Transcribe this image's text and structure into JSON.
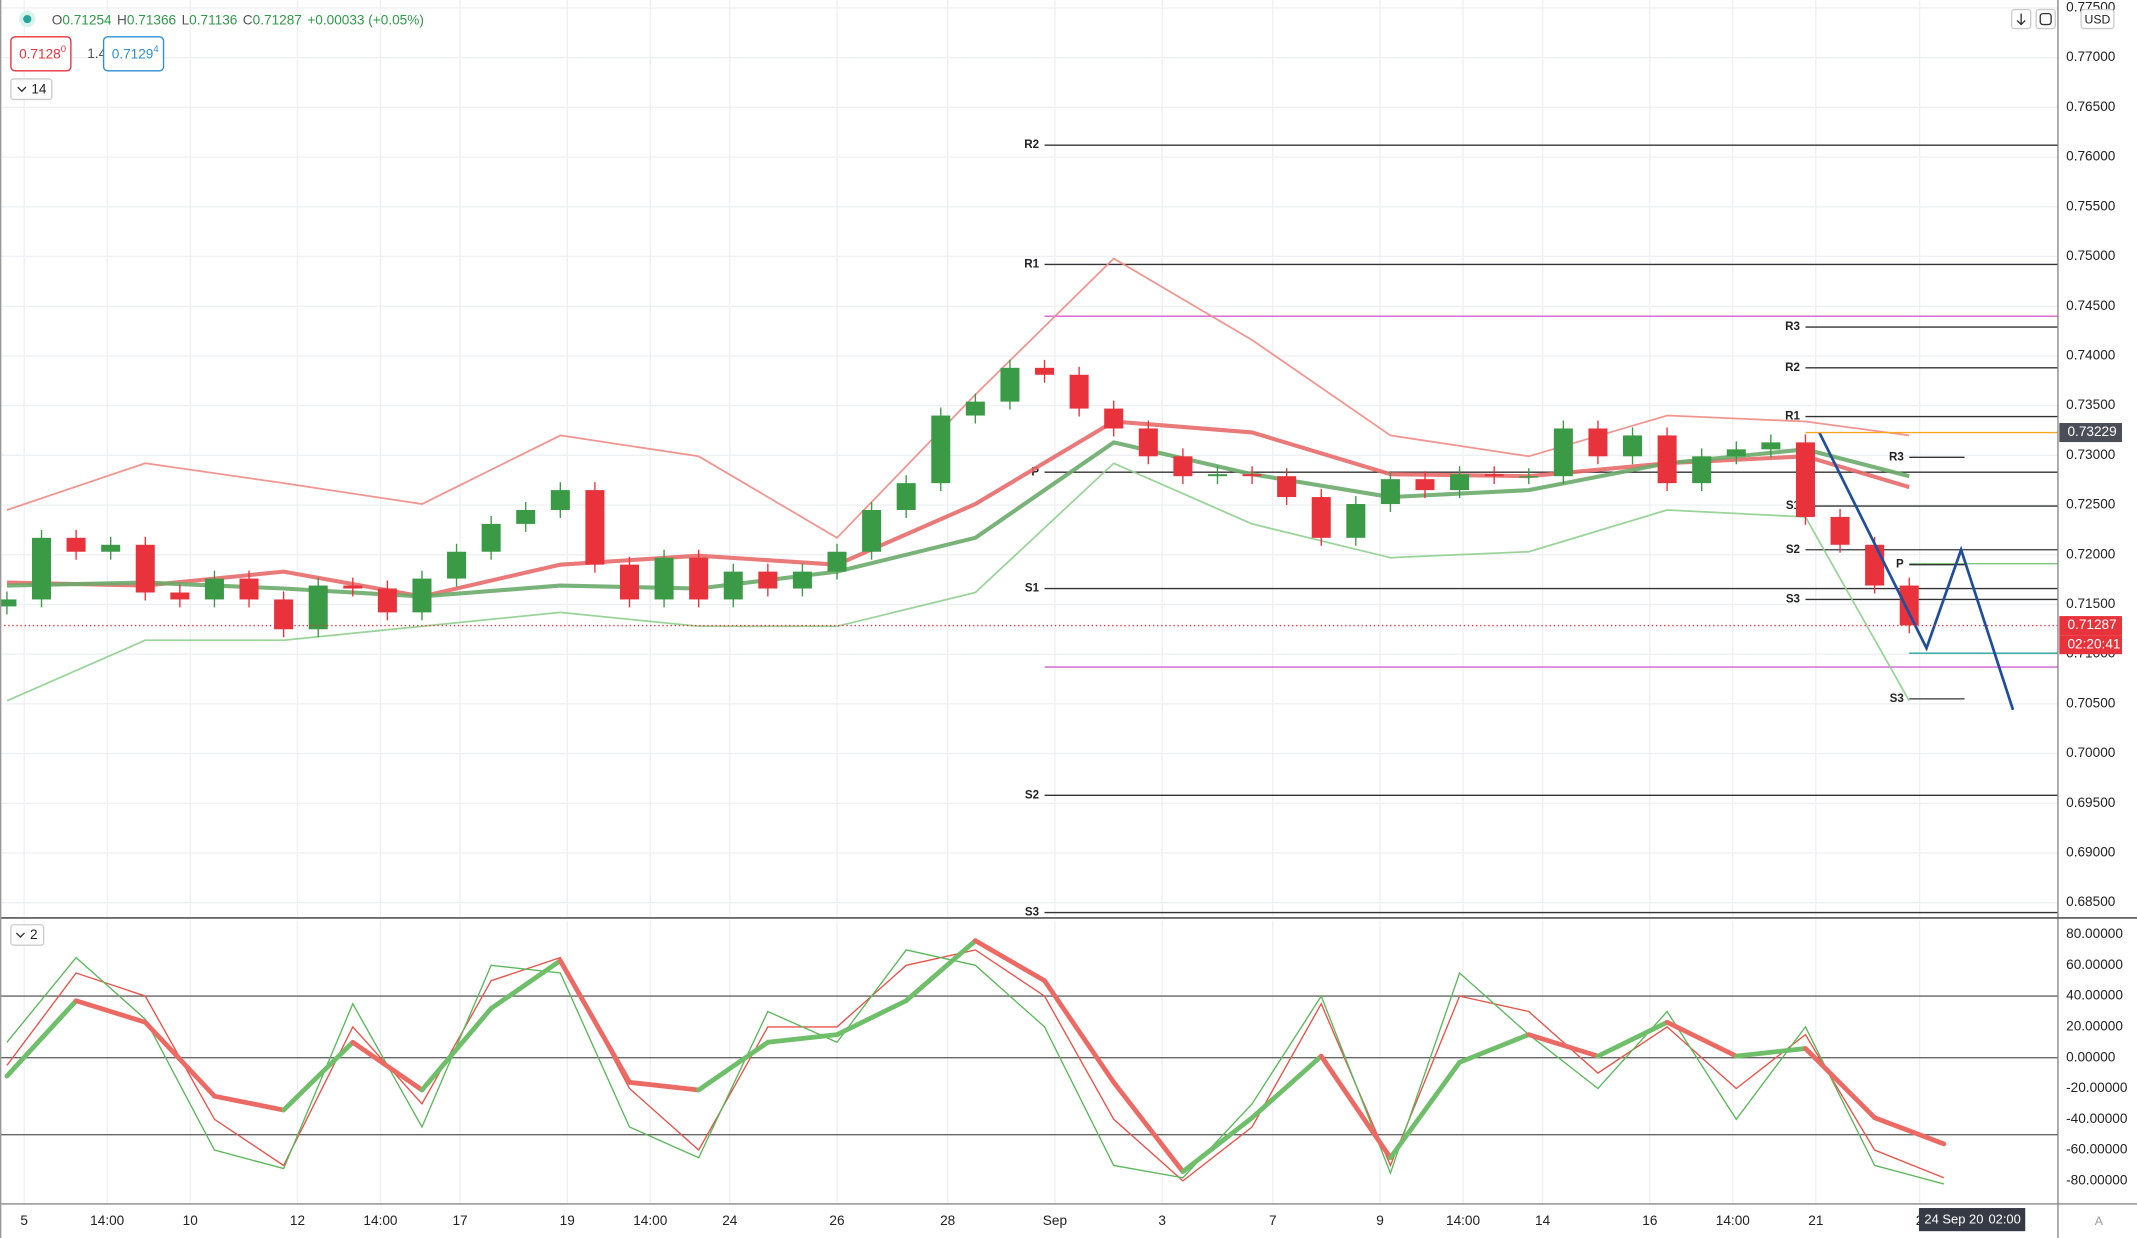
{
  "header": {
    "ohlc": [
      {
        "key": "O",
        "value": "0.71254"
      },
      {
        "key": "H",
        "value": "0.71366"
      },
      {
        "key": "L",
        "value": "0.71136"
      },
      {
        "key": "C",
        "value": "0.71287"
      }
    ],
    "change": "+0.00033 (+0.05%)",
    "bid": {
      "main": "0.7128",
      "pip": "0"
    },
    "spread": "1.4",
    "ask": {
      "main": "0.7129",
      "pip": "4"
    },
    "indicator_toggle": "14",
    "currency": "USD"
  },
  "footer": {
    "oscillator_toggle": "2",
    "cursor_date": "24 Sep 20",
    "cursor_time": "02:00",
    "scale_mode": "A"
  },
  "chart_data": [
    {
      "type": "candlestick",
      "grid": true,
      "up_color": "#3a9a45",
      "down_color": "#e8323c",
      "xlim": [
        -0.2,
        59.3
      ],
      "xticks": [
        {
          "value": 0.5,
          "label": "5"
        },
        {
          "value": 2.9,
          "label": "14:00"
        },
        {
          "value": 5.3,
          "label": "10"
        },
        {
          "value": 8.4,
          "label": "12"
        },
        {
          "value": 10.8,
          "label": "14:00"
        },
        {
          "value": 13.1,
          "label": "17"
        },
        {
          "value": 16.2,
          "label": "19"
        },
        {
          "value": 18.6,
          "label": "14:00"
        },
        {
          "value": 20.9,
          "label": "24"
        },
        {
          "value": 24.0,
          "label": "26"
        },
        {
          "value": 27.2,
          "label": "28"
        },
        {
          "value": 30.3,
          "label": "Sep"
        },
        {
          "value": 33.4,
          "label": "3"
        },
        {
          "value": 36.6,
          "label": "7"
        },
        {
          "value": 39.7,
          "label": "9"
        },
        {
          "value": 42.1,
          "label": "14:00"
        },
        {
          "value": 44.4,
          "label": "14"
        },
        {
          "value": 47.5,
          "label": "16"
        },
        {
          "value": 49.9,
          "label": "14:00"
        },
        {
          "value": 52.3,
          "label": "21"
        },
        {
          "value": 55.3,
          "label": "2"
        }
      ],
      "ylim": [
        0.6836,
        0.7758
      ],
      "yticks": [
        {
          "value": 0.685,
          "label": "0.68500"
        },
        {
          "value": 0.69,
          "label": "0.69000"
        },
        {
          "value": 0.695,
          "label": "0.69500"
        },
        {
          "value": 0.7,
          "label": "0.70000"
        },
        {
          "value": 0.705,
          "label": "0.70500"
        },
        {
          "value": 0.71,
          "label": "0.71000"
        },
        {
          "value": 0.715,
          "label": "0.71500"
        },
        {
          "value": 0.72,
          "label": "0.72000"
        },
        {
          "value": 0.725,
          "label": "0.72500"
        },
        {
          "value": 0.73,
          "label": "0.73000"
        },
        {
          "value": 0.735,
          "label": "0.73500"
        },
        {
          "value": 0.74,
          "label": "0.74000"
        },
        {
          "value": 0.745,
          "label": "0.74500"
        },
        {
          "value": 0.75,
          "label": "0.75000"
        },
        {
          "value": 0.755,
          "label": "0.75500"
        },
        {
          "value": 0.76,
          "label": "0.76000"
        },
        {
          "value": 0.765,
          "label": "0.76500"
        },
        {
          "value": 0.77,
          "label": "0.77000"
        },
        {
          "value": 0.775,
          "label": "0.77500"
        }
      ],
      "open": [
        0.7148,
        0.7155,
        0.7217,
        0.7203,
        0.721,
        0.7162,
        0.7155,
        0.7176,
        0.7155,
        0.7125,
        0.7169,
        0.7166,
        0.7142,
        0.7176,
        0.7203,
        0.7231,
        0.7245,
        0.7265,
        0.719,
        0.7155,
        0.7197,
        0.7155,
        0.7183,
        0.7166,
        0.7183,
        0.7203,
        0.7245,
        0.7272,
        0.734,
        0.7354,
        0.7388,
        0.7381,
        0.7347,
        0.7327,
        0.7299,
        0.7279,
        0.7281,
        0.7279,
        0.7258,
        0.7217,
        0.7251,
        0.7276,
        0.7265,
        0.7281,
        0.7279,
        0.7279,
        0.7327,
        0.7299,
        0.732,
        0.7272,
        0.7299,
        0.7306,
        0.7313,
        0.7238,
        0.721,
        0.7169
      ],
      "high": [
        0.7163,
        0.7225,
        0.7225,
        0.7218,
        0.7218,
        0.717,
        0.7184,
        0.7184,
        0.7163,
        0.7177,
        0.7177,
        0.7174,
        0.7184,
        0.7211,
        0.7239,
        0.7253,
        0.7273,
        0.7273,
        0.7198,
        0.7205,
        0.7205,
        0.7191,
        0.7191,
        0.7191,
        0.7211,
        0.7253,
        0.728,
        0.7348,
        0.7362,
        0.7396,
        0.7396,
        0.7389,
        0.7355,
        0.7335,
        0.7307,
        0.7289,
        0.7289,
        0.7287,
        0.7266,
        0.7259,
        0.7284,
        0.7284,
        0.7289,
        0.7289,
        0.7287,
        0.7335,
        0.7335,
        0.7328,
        0.7328,
        0.7307,
        0.7314,
        0.7321,
        0.7321,
        0.7246,
        0.7218,
        0.7177
      ],
      "low": [
        0.714,
        0.7147,
        0.7195,
        0.7195,
        0.7154,
        0.7147,
        0.7147,
        0.7147,
        0.7117,
        0.7117,
        0.7158,
        0.7134,
        0.7134,
        0.7168,
        0.7195,
        0.7223,
        0.7237,
        0.7182,
        0.7147,
        0.7147,
        0.7147,
        0.7147,
        0.7158,
        0.7158,
        0.7175,
        0.7195,
        0.7237,
        0.7264,
        0.7332,
        0.7346,
        0.7373,
        0.7339,
        0.7319,
        0.7291,
        0.7271,
        0.7271,
        0.7271,
        0.725,
        0.7209,
        0.7209,
        0.7243,
        0.7257,
        0.7257,
        0.7271,
        0.7271,
        0.7271,
        0.7291,
        0.7291,
        0.7264,
        0.7264,
        0.7291,
        0.7298,
        0.723,
        0.7202,
        0.7161,
        0.7121
      ],
      "close": [
        0.7155,
        0.7217,
        0.7203,
        0.721,
        0.7162,
        0.7155,
        0.7176,
        0.7155,
        0.7125,
        0.7169,
        0.7166,
        0.7142,
        0.7176,
        0.7203,
        0.7231,
        0.7245,
        0.7265,
        0.719,
        0.7155,
        0.7197,
        0.7155,
        0.7183,
        0.7166,
        0.7183,
        0.7203,
        0.7245,
        0.7272,
        0.734,
        0.7354,
        0.7388,
        0.7381,
        0.7347,
        0.7327,
        0.7299,
        0.7279,
        0.7281,
        0.7279,
        0.7258,
        0.7217,
        0.7251,
        0.7276,
        0.7265,
        0.7281,
        0.7279,
        0.7279,
        0.7327,
        0.7299,
        0.732,
        0.7272,
        0.7299,
        0.7306,
        0.7313,
        0.7238,
        0.721,
        0.7169,
        0.7129
      ],
      "overlays": [
        {
          "color": "#f08a84",
          "width": 1.3,
          "x": [
            0,
            4,
            8,
            12,
            16,
            20,
            24,
            28,
            32,
            36,
            40,
            44,
            48,
            52,
            55
          ],
          "values": [
            0.7245,
            0.7292,
            0.7272,
            0.7251,
            0.732,
            0.7299,
            0.7217,
            0.7361,
            0.7498,
            0.7416,
            0.732,
            0.7299,
            0.734,
            0.7334,
            0.732
          ]
        },
        {
          "color": "#8fcf8f",
          "width": 1.3,
          "x": [
            0,
            4,
            8,
            12,
            16,
            20,
            24,
            28,
            32,
            36,
            40,
            44,
            48,
            52,
            55
          ],
          "values": [
            0.7053,
            0.7114,
            0.7114,
            0.7128,
            0.7142,
            0.7128,
            0.7128,
            0.7162,
            0.7292,
            0.7231,
            0.7197,
            0.7203,
            0.7245,
            0.7238,
            0.7053
          ]
        },
        {
          "color": "#e86a6a",
          "width": 3,
          "x": [
            0,
            4,
            8,
            12,
            16,
            20,
            24,
            28,
            32,
            36,
            40,
            44,
            48,
            52,
            55
          ],
          "values": [
            0.7172,
            0.7169,
            0.7183,
            0.7158,
            0.719,
            0.7199,
            0.719,
            0.7251,
            0.7334,
            0.7323,
            0.7281,
            0.7279,
            0.7292,
            0.7299,
            0.7268
          ]
        },
        {
          "color": "#6aab6a",
          "width": 3,
          "x": [
            0,
            4,
            8,
            12,
            16,
            20,
            24,
            28,
            32,
            36,
            40,
            44,
            48,
            52,
            55
          ],
          "values": [
            0.7169,
            0.7172,
            0.7166,
            0.7158,
            0.7169,
            0.7166,
            0.7183,
            0.7217,
            0.7313,
            0.7281,
            0.7258,
            0.7265,
            0.7292,
            0.7306,
            0.7279
          ]
        }
      ],
      "levels": [
        {
          "label": "R2",
          "value": 0.7612,
          "from": 30.0
        },
        {
          "label": "R1",
          "value": 0.7492,
          "from": 30.0
        },
        {
          "label": "P",
          "value": 0.7283,
          "from": 30.0
        },
        {
          "label": "S1",
          "value": 0.7166,
          "from": 30.0
        },
        {
          "label": "S2",
          "value": 0.6958,
          "from": 30.0
        },
        {
          "label": "S3",
          "value": 0.684,
          "from": 30.0
        },
        {
          "label": "R3",
          "value": 0.7429,
          "from": 52.0
        },
        {
          "label": "R2",
          "value": 0.7388,
          "from": 52.0
        },
        {
          "label": "R1",
          "value": 0.7339,
          "from": 52.0
        },
        {
          "label": "S1",
          "value": 0.7249,
          "from": 52.0
        },
        {
          "label": "S2",
          "value": 0.7205,
          "from": 52.0
        },
        {
          "label": "S3",
          "value": 0.7155,
          "from": 52.0
        },
        {
          "label": "R3",
          "value": 0.7298,
          "from": 55.0,
          "to": 56.6
        },
        {
          "label": "P",
          "value": 0.719,
          "from": 55.0,
          "to": 56.6
        },
        {
          "label": "S3",
          "value": 0.7055,
          "from": 55.0,
          "to": 56.6
        }
      ],
      "lines": [
        {
          "value": 0.744,
          "from": 30.0,
          "color": "#d35fd3"
        },
        {
          "value": 0.7087,
          "from": 30.0,
          "color": "#d35fd3"
        },
        {
          "value": 0.7191,
          "from": 55.0,
          "color": "#7cc47f"
        },
        {
          "value": 0.7101,
          "from": 55.0,
          "color": "#26a69a"
        }
      ],
      "markers": [
        {
          "value": 0.73229,
          "from": 52.0,
          "color": "#4a4e58",
          "line_color": "#f5a623"
        },
        {
          "value": 0.71287,
          "from": -0.2,
          "color": "#e8323c",
          "line_color": "#e8323c",
          "dotted": true,
          "countdown": "02:20:41"
        }
      ],
      "projection": {
        "color": "#1f4e9c",
        "x": [
          52.4,
          55.5,
          56.5,
          58.0
        ],
        "values": [
          0.7323,
          0.7106,
          0.7205,
          0.7044
        ]
      }
    },
    {
      "type": "line",
      "ylim": [
        -95,
        89
      ],
      "yticks": [
        {
          "value": -80,
          "label": "-80.00000"
        },
        {
          "value": -60,
          "label": "-60.00000"
        },
        {
          "value": -40,
          "label": "-40.00000"
        },
        {
          "value": -20,
          "label": "-20.00000"
        },
        {
          "value": 0,
          "label": "0.00000"
        },
        {
          "value": 20,
          "label": "20.00000"
        },
        {
          "value": 40,
          "label": "40.00000"
        },
        {
          "value": 60,
          "label": "60.00000"
        },
        {
          "value": 80,
          "label": "80.00000"
        }
      ],
      "levels": [
        40,
        0,
        -50
      ],
      "x": [
        0,
        2,
        4,
        6,
        8,
        10,
        12,
        14,
        16,
        18,
        20,
        22,
        24,
        26,
        28,
        30,
        32,
        34,
        36,
        38,
        40,
        42,
        44,
        46,
        48,
        50,
        52,
        54,
        56
      ],
      "series": [
        {
          "color": "#e8534a",
          "width": 1,
          "values": [
            -5,
            55,
            40,
            -40,
            -70,
            20,
            -30,
            50,
            65,
            -20,
            -60,
            20,
            20,
            60,
            70,
            40,
            -40,
            -80,
            -45,
            35,
            -70,
            40,
            30,
            -10,
            20,
            -20,
            15,
            -60,
            -78
          ]
        },
        {
          "color": "#5cb85c",
          "width": 1,
          "values": [
            10,
            65,
            25,
            -60,
            -72,
            35,
            -45,
            60,
            55,
            -45,
            -65,
            30,
            10,
            70,
            60,
            20,
            -70,
            -78,
            -30,
            40,
            -75,
            55,
            15,
            -20,
            30,
            -40,
            20,
            -70,
            -82
          ]
        },
        {
          "color_up": "#6fbf6a",
          "color_down": "#ec6a64",
          "width": 3.5,
          "values": [
            -12,
            37,
            23,
            -25,
            -34,
            10,
            -21,
            32,
            63,
            -16,
            -21,
            10,
            15,
            37,
            76,
            50,
            -16,
            -74,
            -39,
            1,
            -65,
            -3,
            15,
            1,
            23,
            1,
            6,
            -39,
            -56
          ]
        }
      ]
    }
  ]
}
